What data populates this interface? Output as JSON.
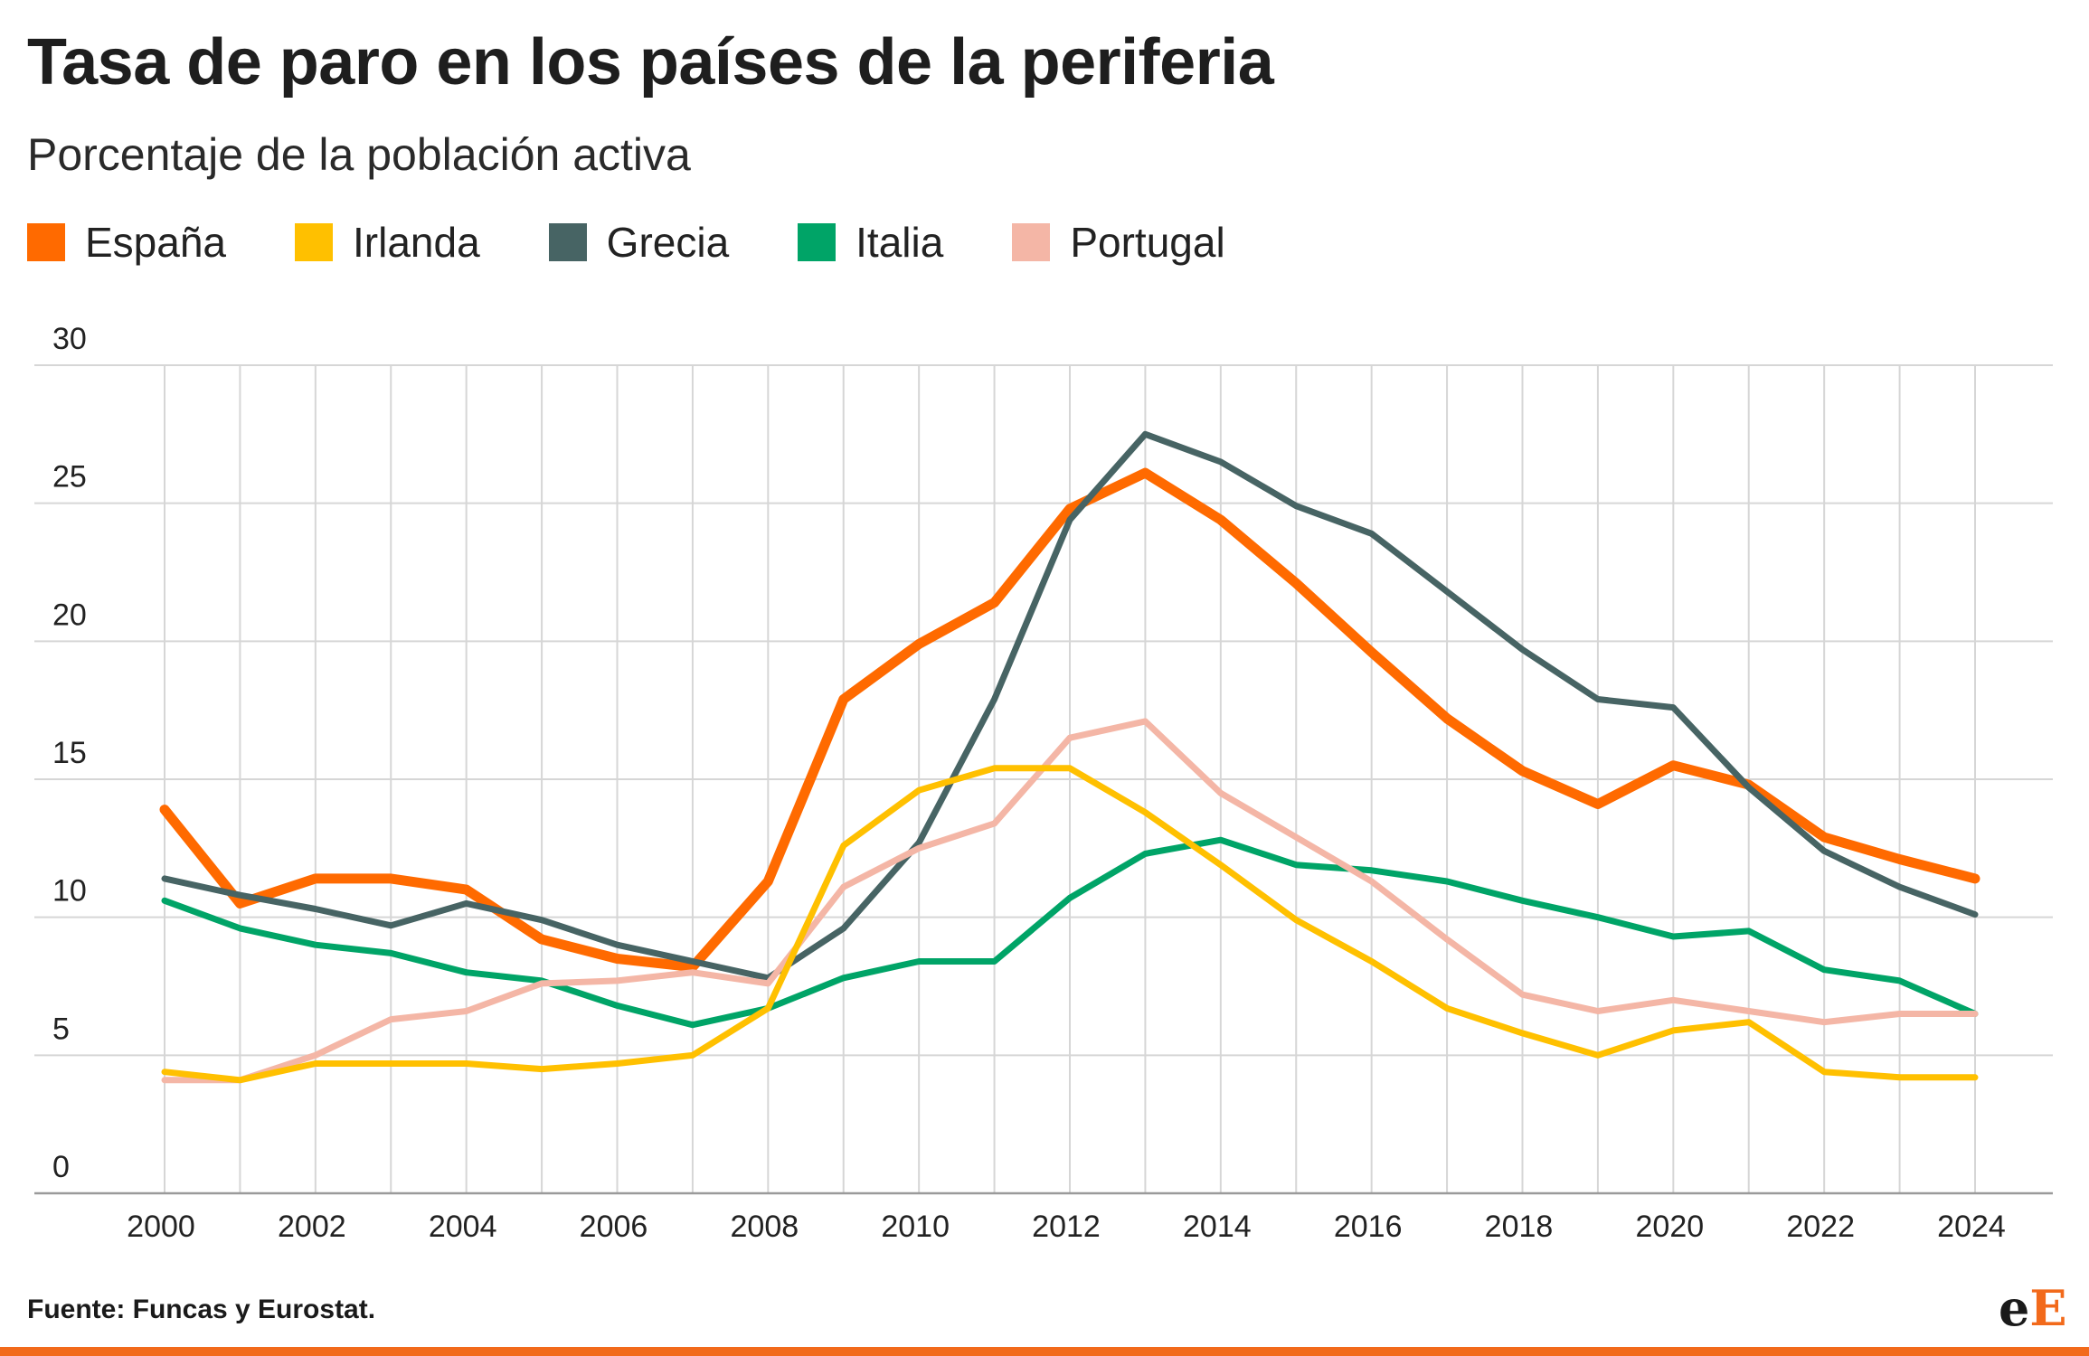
{
  "header": {
    "title": "Tasa de paro en los países de la periferia",
    "subtitle": "Porcentaje de la población activa"
  },
  "footer": {
    "source": "Fuente: Funcas y Eurostat.",
    "logo_left": "e",
    "logo_right": "E",
    "accent_color": "#f26a1b"
  },
  "legend": [
    {
      "label": "España",
      "color": "#ff6a00"
    },
    {
      "label": "Irlanda",
      "color": "#ffc000"
    },
    {
      "label": "Grecia",
      "color": "#476464"
    },
    {
      "label": "Italia",
      "color": "#00a467"
    },
    {
      "label": "Portugal",
      "color": "#f4b6a6"
    }
  ],
  "chart_data": {
    "type": "line",
    "title": "Tasa de paro en los países de la periferia",
    "subtitle": "Porcentaje de la población activa",
    "xlabel": "",
    "ylabel": "",
    "ylim": [
      0,
      30
    ],
    "yticks": [
      0,
      5,
      10,
      15,
      20,
      25,
      30
    ],
    "xticks": [
      2000,
      2002,
      2004,
      2006,
      2008,
      2010,
      2012,
      2014,
      2016,
      2018,
      2020,
      2022,
      2024
    ],
    "grid": true,
    "legend_position": "top-left",
    "x": [
      2000,
      2001,
      2002,
      2003,
      2004,
      2005,
      2006,
      2007,
      2008,
      2009,
      2010,
      2011,
      2012,
      2013,
      2014,
      2015,
      2016,
      2017,
      2018,
      2019,
      2020,
      2021,
      2022,
      2023,
      2024
    ],
    "series": [
      {
        "name": "España",
        "color": "#ff6a00",
        "width": 11,
        "values": [
          13.9,
          10.5,
          11.4,
          11.4,
          11.0,
          9.2,
          8.5,
          8.2,
          11.3,
          17.9,
          19.9,
          21.4,
          24.8,
          26.1,
          24.4,
          22.1,
          19.6,
          17.2,
          15.3,
          14.1,
          15.5,
          14.8,
          12.9,
          12.1,
          11.4
        ]
      },
      {
        "name": "Grecia",
        "color": "#476464",
        "width": 7,
        "values": [
          11.4,
          10.8,
          10.3,
          9.7,
          10.5,
          9.9,
          9.0,
          8.4,
          7.8,
          9.6,
          12.7,
          17.9,
          24.4,
          27.5,
          26.5,
          24.9,
          23.9,
          21.8,
          19.7,
          17.9,
          17.6,
          14.7,
          12.4,
          11.1,
          10.1
        ]
      },
      {
        "name": "Italia",
        "color": "#00a467",
        "width": 7,
        "values": [
          10.6,
          9.6,
          9.0,
          8.7,
          8.0,
          7.7,
          6.8,
          6.1,
          6.7,
          7.8,
          8.4,
          8.4,
          10.7,
          12.3,
          12.8,
          11.9,
          11.7,
          11.3,
          10.6,
          10.0,
          9.3,
          9.5,
          8.1,
          7.7,
          6.5
        ]
      },
      {
        "name": "Portugal",
        "color": "#f4b6a6",
        "width": 7,
        "values": [
          4.1,
          4.1,
          5.0,
          6.3,
          6.6,
          7.6,
          7.7,
          8.0,
          7.6,
          11.1,
          12.5,
          13.4,
          16.5,
          17.1,
          14.5,
          12.9,
          11.3,
          9.2,
          7.2,
          6.6,
          7.0,
          6.6,
          6.2,
          6.5,
          6.5
        ]
      },
      {
        "name": "Irlanda",
        "color": "#ffc000",
        "width": 7,
        "values": [
          4.4,
          4.1,
          4.7,
          4.7,
          4.7,
          4.5,
          4.7,
          5.0,
          6.7,
          12.6,
          14.6,
          15.4,
          15.4,
          13.8,
          11.9,
          9.9,
          8.4,
          6.7,
          5.8,
          5.0,
          5.9,
          6.2,
          4.4,
          4.2,
          4.2
        ]
      }
    ]
  }
}
